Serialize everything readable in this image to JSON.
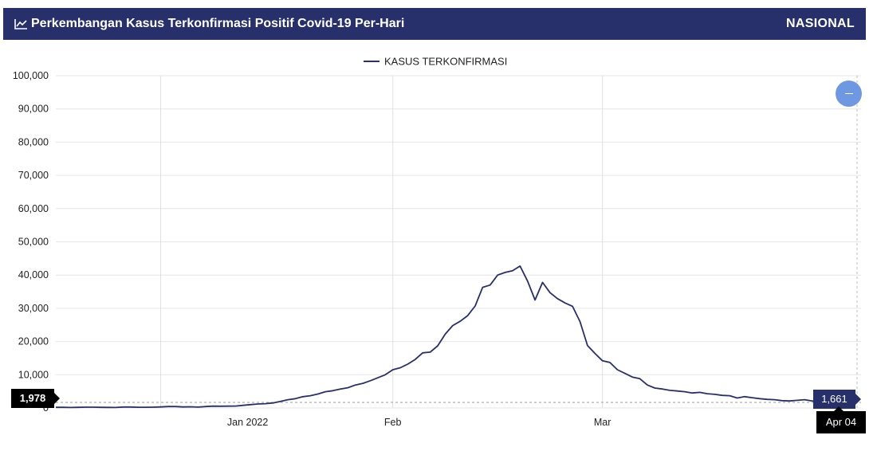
{
  "header": {
    "title": "Perkembangan Kasus Terkonfirmasi Positif Covid-19 Per-Hari",
    "title_icon": "line-chart-icon",
    "scope": "NASIONAL",
    "background": "#27306b"
  },
  "zoom": {
    "icon": "minus-icon",
    "color": "#6f98e2"
  },
  "crosshair": {
    "left_value": "1,978",
    "right_value": "1,661",
    "date": "Apr 04"
  },
  "chart_data": {
    "type": "line",
    "legend": {
      "label": "KASUS TERKONFIRMASI",
      "position": "top-center"
    },
    "line_color": "#27306b",
    "ylim": [
      0,
      100000
    ],
    "yticks": [
      0,
      10000,
      20000,
      30000,
      40000,
      50000,
      60000,
      70000,
      80000,
      90000,
      100000
    ],
    "ytick_labels": [
      "0",
      "10,000",
      "20,000",
      "30,000",
      "40,000",
      "50,000",
      "60,000",
      "70,000",
      "80,000",
      "90,000",
      "100,000"
    ],
    "xlim": [
      "2021-12-18",
      "2022-04-04"
    ],
    "xticks": [
      {
        "date": "2022-01-01",
        "label": "Jan 2022"
      },
      {
        "date": "2022-02-01",
        "label": "Feb"
      },
      {
        "date": "2022-03-01",
        "label": "Mar"
      }
    ],
    "grid": true,
    "series": [
      {
        "name": "KASUS TERKONFIRMASI",
        "x": [
          "2021-12-18",
          "2021-12-19",
          "2021-12-20",
          "2021-12-21",
          "2021-12-22",
          "2021-12-23",
          "2021-12-24",
          "2021-12-25",
          "2021-12-26",
          "2021-12-27",
          "2021-12-28",
          "2021-12-29",
          "2021-12-30",
          "2021-12-31",
          "2022-01-01",
          "2022-01-02",
          "2022-01-03",
          "2022-01-04",
          "2022-01-05",
          "2022-01-06",
          "2022-01-07",
          "2022-01-08",
          "2022-01-09",
          "2022-01-10",
          "2022-01-11",
          "2022-01-12",
          "2022-01-13",
          "2022-01-14",
          "2022-01-15",
          "2022-01-16",
          "2022-01-17",
          "2022-01-18",
          "2022-01-19",
          "2022-01-20",
          "2022-01-21",
          "2022-01-22",
          "2022-01-23",
          "2022-01-24",
          "2022-01-25",
          "2022-01-26",
          "2022-01-27",
          "2022-01-28",
          "2022-01-29",
          "2022-01-30",
          "2022-01-31",
          "2022-02-01",
          "2022-02-02",
          "2022-02-03",
          "2022-02-04",
          "2022-02-05",
          "2022-02-06",
          "2022-02-07",
          "2022-02-08",
          "2022-02-09",
          "2022-02-10",
          "2022-02-11",
          "2022-02-12",
          "2022-02-13",
          "2022-02-14",
          "2022-02-15",
          "2022-02-16",
          "2022-02-17",
          "2022-02-18",
          "2022-02-19",
          "2022-02-20",
          "2022-02-21",
          "2022-02-22",
          "2022-02-23",
          "2022-02-24",
          "2022-02-25",
          "2022-02-26",
          "2022-02-27",
          "2022-02-28",
          "2022-03-01",
          "2022-03-02",
          "2022-03-03",
          "2022-03-04",
          "2022-03-05",
          "2022-03-06",
          "2022-03-07",
          "2022-03-08",
          "2022-03-09",
          "2022-03-10",
          "2022-03-11",
          "2022-03-12",
          "2022-03-13",
          "2022-03-14",
          "2022-03-15",
          "2022-03-16",
          "2022-03-17",
          "2022-03-18",
          "2022-03-19",
          "2022-03-20",
          "2022-03-21",
          "2022-03-22",
          "2022-03-23",
          "2022-03-24",
          "2022-03-25",
          "2022-03-26",
          "2022-03-27",
          "2022-03-28",
          "2022-03-29",
          "2022-03-30",
          "2022-03-31",
          "2022-04-01",
          "2022-04-02",
          "2022-04-03",
          "2022-04-04"
        ],
        "y": [
          180,
          190,
          150,
          200,
          240,
          230,
          180,
          160,
          150,
          280,
          280,
          210,
          220,
          230,
          300,
          420,
          430,
          300,
          350,
          260,
          420,
          560,
          520,
          550,
          580,
          800,
          1000,
          1200,
          1300,
          1500,
          2000,
          2500,
          2800,
          3400,
          3700,
          4200,
          4900,
          5200,
          5700,
          6100,
          6900,
          7400,
          8200,
          9100,
          10000,
          11500,
          12100,
          13200,
          14600,
          16600,
          16800,
          18700,
          22200,
          24800,
          26100,
          27800,
          30700,
          36300,
          37000,
          40000,
          40800,
          41300,
          42700,
          38200,
          32500,
          37800,
          34700,
          32900,
          31600,
          30600,
          26000,
          18800,
          16400,
          14200,
          13700,
          11500,
          10400,
          9300,
          8800,
          6900,
          6000,
          5700,
          5300,
          5100,
          4900,
          4500,
          4700,
          4300,
          4100,
          3800,
          3700,
          3000,
          3400,
          3100,
          2800,
          2600,
          2500,
          2200,
          2100,
          2300,
          2500,
          2100,
          1900,
          1800,
          1700,
          1978,
          1661,
          1661
        ],
        "ydisplay_override": true
      }
    ]
  }
}
